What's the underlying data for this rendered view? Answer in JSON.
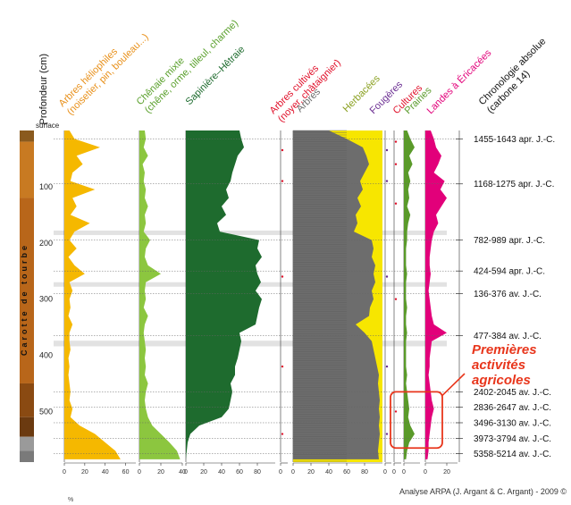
{
  "depth_axis": {
    "title": "Profondeur (cm)",
    "surface_label": "surface",
    "ticks": [
      "100",
      "200",
      "300",
      "400",
      "500"
    ]
  },
  "core": {
    "label": "Carotte de tourbe"
  },
  "panels": [
    {
      "id": "heliophiles",
      "title_lines": [
        "Arbres héliophiles",
        "(noisetier, pin, bouleau...)"
      ],
      "color": "#f5b800",
      "title_color": "#e8901a",
      "ticks": [
        "0",
        "20",
        "40",
        "60"
      ]
    },
    {
      "id": "chenaie",
      "title_lines": [
        "Chênaie mixte",
        "(chêne, orme, tilleul, charme)"
      ],
      "color": "#8cc63f",
      "title_color": "#5aa02c",
      "ticks": [
        "0",
        "20",
        "40"
      ]
    },
    {
      "id": "sapiniere",
      "title_lines": [
        "Sapinière–Hêtraie"
      ],
      "color": "#1e6b2e",
      "title_color": "#1e6b2e",
      "ticks": [
        "0",
        "20",
        "40",
        "60",
        "80"
      ]
    },
    {
      "id": "cultives",
      "title_lines": [
        "Arbres cultivés",
        "(noyer, châtaignier)"
      ],
      "color": "#e0102a",
      "title_color": "#e0102a",
      "ticks": [
        "0"
      ]
    },
    {
      "id": "arbres_herbacees",
      "title_lines": [
        "Arbres",
        "Herbacées"
      ],
      "color": "#6d6d6d",
      "title_color": "#6d6d6d",
      "ticks": [
        "0",
        "20",
        "40",
        "60",
        "80"
      ]
    },
    {
      "id": "fougeres",
      "title_lines": [
        "Fougères"
      ],
      "color": "#6a2c91",
      "title_color": "#6a2c91",
      "ticks": [
        "0"
      ]
    },
    {
      "id": "cultures",
      "title_lines": [
        "Cultures"
      ],
      "color": "#e0102a",
      "title_color": "#e0102a",
      "ticks": [
        "0"
      ]
    },
    {
      "id": "prairies",
      "title_lines": [
        "Prairies"
      ],
      "color": "#5a9a2a",
      "title_color": "#5a9a2a",
      "ticks": [
        "0"
      ]
    },
    {
      "id": "landes",
      "title_lines": [
        "Landes à Éricacées"
      ],
      "color": "#e2007a",
      "title_color": "#e2007a",
      "ticks": [
        "0",
        "20"
      ]
    }
  ],
  "chronology": {
    "title_lines": [
      "Chronologie absolue",
      "(carbone 14)"
    ],
    "dates": [
      {
        "label": "1455-1643 apr. J.-C.",
        "depth": 15
      },
      {
        "label": "1168-1275 apr. J.-C.",
        "depth": 95
      },
      {
        "label": "782-989 apr. J.-C.",
        "depth": 195
      },
      {
        "label": "424-594 apr. J.-C.",
        "depth": 250
      },
      {
        "label": "136-376 av. J.-C.",
        "depth": 290
      },
      {
        "label": "477-384 av. J.-C.",
        "depth": 365
      },
      {
        "label": "2402-2045 av. J.-C.",
        "depth": 465
      },
      {
        "label": "2836-2647 av. J.-C.",
        "depth": 492
      },
      {
        "label": "3496-3130 av. J.-C.",
        "depth": 520
      },
      {
        "label": "3973-3794 av. J.-C.",
        "depth": 548
      },
      {
        "label": "5358-5214 av. J.-C.",
        "depth": 575
      }
    ]
  },
  "annotation": {
    "lines": [
      "Premières",
      "activités",
      "agricoles"
    ],
    "color": "#e8361c"
  },
  "footer": {
    "percent_unit": "%",
    "credit": "Analyse ARPA (J. Argant & C. Argant) - 2009 ©"
  },
  "chart_data": {
    "type": "area",
    "orientation": "vertical-depth",
    "ylabel": "Profondeur (cm)",
    "ylim": [
      0,
      590
    ],
    "depth": [
      0,
      15,
      30,
      45,
      60,
      75,
      90,
      105,
      120,
      135,
      150,
      165,
      180,
      195,
      210,
      225,
      240,
      255,
      270,
      285,
      300,
      315,
      330,
      345,
      360,
      375,
      390,
      405,
      420,
      435,
      450,
      465,
      480,
      495,
      510,
      525,
      540,
      555,
      570,
      585
    ],
    "series": [
      {
        "name": "Arbres héliophiles",
        "xlim": [
          0,
          70
        ],
        "values": [
          5,
          10,
          35,
          12,
          18,
          8,
          6,
          30,
          8,
          12,
          6,
          25,
          10,
          5,
          12,
          4,
          10,
          20,
          5,
          8,
          5,
          6,
          4,
          8,
          5,
          5,
          6,
          4,
          5,
          4,
          5,
          6,
          5,
          8,
          6,
          15,
          30,
          40,
          50,
          55
        ]
      },
      {
        "name": "Chênaie mixte",
        "xlim": [
          0,
          40
        ],
        "values": [
          5,
          6,
          4,
          8,
          3,
          5,
          4,
          6,
          5,
          8,
          5,
          6,
          4,
          10,
          6,
          5,
          8,
          20,
          6,
          5,
          6,
          4,
          8,
          5,
          4,
          5,
          6,
          5,
          6,
          5,
          8,
          6,
          5,
          6,
          8,
          12,
          20,
          28,
          35,
          38
        ]
      },
      {
        "name": "Sapinière–Hêtraie",
        "xlim": [
          0,
          100
        ],
        "values": [
          60,
          62,
          65,
          58,
          55,
          52,
          50,
          45,
          48,
          40,
          45,
          35,
          38,
          82,
          80,
          85,
          78,
          80,
          84,
          78,
          85,
          82,
          80,
          78,
          60,
          62,
          60,
          58,
          55,
          55,
          50,
          52,
          50,
          48,
          40,
          15,
          5,
          2,
          1,
          0
        ]
      },
      {
        "name": "Arbres",
        "xlim": [
          0,
          100
        ],
        "values": [
          40,
          60,
          78,
          82,
          85,
          80,
          75,
          78,
          72,
          76,
          70,
          72,
          68,
          88,
          90,
          88,
          92,
          90,
          92,
          88,
          90,
          86,
          85,
          70,
          80,
          88,
          90,
          92,
          94,
          96,
          95,
          96,
          97,
          96,
          97,
          96,
          97,
          96,
          95,
          96
        ]
      },
      {
        "name": "Landes à Éricacées",
        "xlim": [
          0,
          30
        ],
        "values": [
          5,
          8,
          10,
          15,
          12,
          8,
          18,
          14,
          20,
          15,
          10,
          12,
          8,
          6,
          5,
          4,
          4,
          5,
          4,
          3,
          4,
          5,
          6,
          8,
          20,
          6,
          5,
          4,
          4,
          3,
          4,
          5,
          6,
          8,
          6,
          5,
          4,
          3,
          3,
          2
        ]
      },
      {
        "name": "Prairies",
        "xlim": [
          0,
          15
        ],
        "values": [
          3,
          6,
          10,
          5,
          8,
          4,
          6,
          4,
          5,
          3,
          6,
          4,
          3,
          3,
          2,
          2,
          2,
          3,
          2,
          2,
          2,
          3,
          2,
          2,
          3,
          2,
          2,
          2,
          2,
          3,
          2,
          3,
          4,
          5,
          4,
          6,
          10,
          5,
          3,
          2
        ]
      }
    ],
    "series_axis_ticks": {
      "Arbres héliophiles": [
        0,
        20,
        40,
        60
      ],
      "Chênaie mixte": [
        0,
        20,
        40
      ],
      "Sapinière–Hêtraie": [
        0,
        20,
        40,
        60,
        80
      ],
      "Arbres": [
        0,
        20,
        40,
        60,
        80
      ],
      "Landes à Éricacées": [
        0,
        20
      ]
    }
  }
}
